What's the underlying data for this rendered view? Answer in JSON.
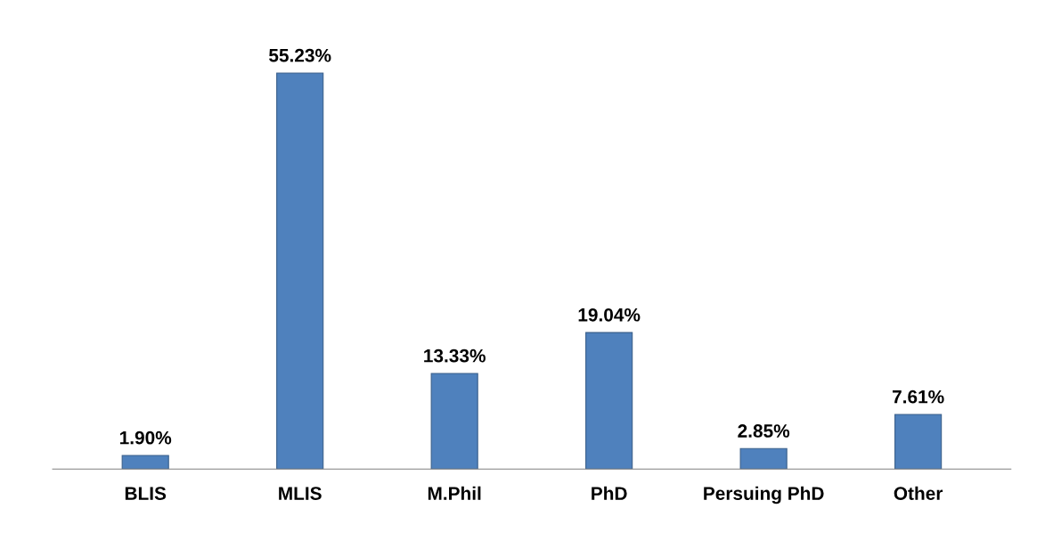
{
  "chart_data": {
    "type": "bar",
    "categories": [
      "BLIS",
      "MLIS",
      "M.Phil",
      "PhD",
      "Persuing PhD",
      "Other"
    ],
    "values": [
      1.9,
      55.23,
      13.33,
      19.04,
      2.85,
      7.61
    ],
    "value_labels": [
      "1.90%",
      "55.23%",
      "13.33%",
      "19.04%",
      "2.85%",
      "7.61%"
    ],
    "color": "#4f81bd",
    "grid": false,
    "legend": false
  }
}
